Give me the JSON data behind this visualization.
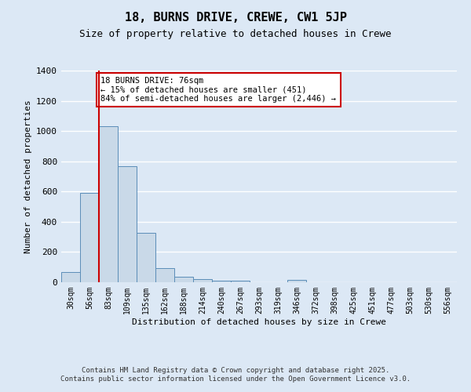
{
  "title1": "18, BURNS DRIVE, CREWE, CW1 5JP",
  "title2": "Size of property relative to detached houses in Crewe",
  "xlabel": "Distribution of detached houses by size in Crewe",
  "ylabel": "Number of detached properties",
  "bar_labels": [
    "30sqm",
    "56sqm",
    "83sqm",
    "109sqm",
    "135sqm",
    "162sqm",
    "188sqm",
    "214sqm",
    "240sqm",
    "267sqm",
    "293sqm",
    "319sqm",
    "346sqm",
    "372sqm",
    "398sqm",
    "425sqm",
    "451sqm",
    "477sqm",
    "503sqm",
    "530sqm",
    "556sqm"
  ],
  "bar_values": [
    65,
    590,
    1030,
    765,
    325,
    95,
    35,
    20,
    10,
    8,
    0,
    0,
    15,
    0,
    0,
    0,
    0,
    0,
    0,
    0,
    0
  ],
  "bar_color": "#c9d9e8",
  "bar_edge_color": "#5b8db8",
  "background_color": "#dce8f5",
  "grid_color": "#ffffff",
  "red_line_x": 1.5,
  "annotation_title": "18 BURNS DRIVE: 76sqm",
  "annotation_line1": "← 15% of detached houses are smaller (451)",
  "annotation_line2": "84% of semi-detached houses are larger (2,446) →",
  "annotation_box_color": "#ffffff",
  "annotation_box_edge": "#cc0000",
  "red_line_color": "#cc0000",
  "footer1": "Contains HM Land Registry data © Crown copyright and database right 2025.",
  "footer2": "Contains public sector information licensed under the Open Government Licence v3.0.",
  "ylim": [
    0,
    1400
  ]
}
